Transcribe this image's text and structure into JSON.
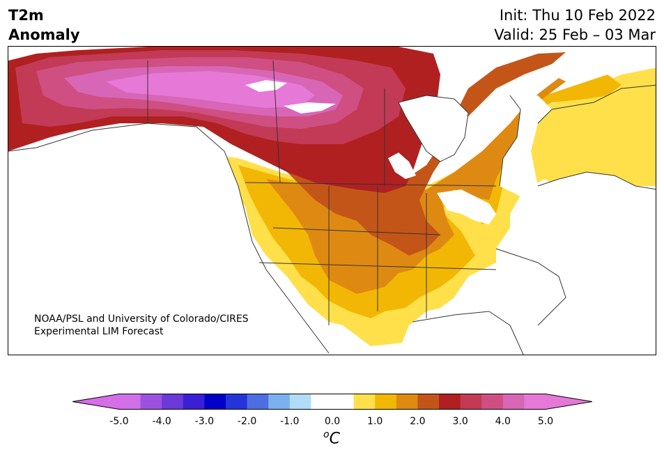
{
  "title": {
    "variable_line1": "T2m",
    "variable_line2": "Anomaly",
    "init": "Init: Thu 10 Feb 2022",
    "valid": "Valid: 25 Feb – 03 Mar"
  },
  "credit": {
    "line1": "NOAA/PSL and University of Colorado/CIRES",
    "line2": "Experimental LIM Forecast"
  },
  "colorbar": {
    "unit_sup": "o",
    "unit_base": "C",
    "ticks": [
      "-5.0",
      "-4.0",
      "-3.0",
      "-2.0",
      "-1.0",
      "0.0",
      "1.0",
      "2.0",
      "3.0",
      "4.0",
      "5.0"
    ],
    "colors": [
      "#d16fe8",
      "#9c52de",
      "#6b3ad9",
      "#3a1fd6",
      "#0000c8",
      "#2534d8",
      "#4d6ee0",
      "#7ab0f0",
      "#b0dcf8",
      "#ffffff",
      "#ffffff",
      "#ffe04a",
      "#f2b705",
      "#de8a12",
      "#c45518",
      "#b02020",
      "#c23a55",
      "#cf4f82",
      "#d866b6",
      "#e678d8"
    ],
    "under_color": "#d66ee8",
    "over_color": "#e678d8"
  },
  "map": {
    "region": "North America",
    "anomaly_colors": {
      "lt_1": "#ffe04a",
      "1_1.5": "#f2b705",
      "1.5_2": "#de8a12",
      "2_2.5": "#c45518",
      "2.5_3": "#b02020",
      "3_3.5": "#c23a55",
      "3.5_4": "#cf4f82",
      "4_4.5": "#d866b6",
      "gt_4.5": "#e678d8"
    }
  }
}
